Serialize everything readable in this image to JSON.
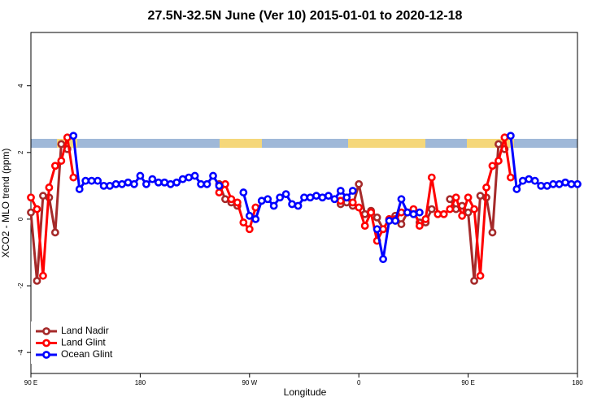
{
  "chart_data": {
    "type": "line",
    "title": "27.5N-32.5N June (Ver 10)   2015-01-01 to 2020-12-18",
    "x_label": "Longitude",
    "y_label": "XCO2 - MLO trend (ppm)",
    "x": [
      90,
      95,
      100,
      105,
      110,
      115,
      120,
      125,
      130,
      135,
      140,
      145,
      150,
      155,
      160,
      165,
      170,
      175,
      180,
      185,
      190,
      195,
      200,
      205,
      210,
      215,
      220,
      225,
      230,
      235,
      240,
      245,
      250,
      255,
      260,
      265,
      270,
      275,
      280,
      285,
      290,
      295,
      300,
      305,
      310,
      315,
      320,
      325,
      330,
      335,
      340,
      345,
      350,
      355,
      360,
      365,
      370,
      375,
      380,
      385,
      390,
      395,
      400,
      405,
      410,
      415,
      420,
      425,
      430,
      435,
      440,
      445,
      450,
      455,
      460,
      465,
      470,
      475,
      480,
      485,
      490,
      495,
      500,
      505,
      510,
      515,
      520,
      525,
      530,
      535,
      540
    ],
    "xlim": [
      90,
      540
    ],
    "xticks": [
      {
        "value": 90,
        "label": "90 E"
      },
      180,
      {
        "value": 270,
        "label": "90 W"
      },
      {
        "value": 360,
        "label": "0"
      },
      {
        "value": 450,
        "label": "90 E"
      },
      {
        "value": 540,
        "label": "180"
      }
    ],
    "ylim": [
      -4.63,
      5.6
    ],
    "yticks": [
      -4,
      -2,
      0,
      2,
      4
    ],
    "legend": "bottom-left",
    "series": [
      {
        "name": "Land Nadir",
        "color": "#a52a2a",
        "values": [
          0.2,
          -1.85,
          0.7,
          0.65,
          -0.4,
          2.25,
          2.1,
          null,
          null,
          null,
          null,
          null,
          null,
          null,
          null,
          null,
          null,
          null,
          null,
          null,
          null,
          null,
          null,
          null,
          null,
          null,
          null,
          null,
          null,
          null,
          null,
          1.05,
          0.6,
          0.5,
          0.4,
          null,
          null,
          null,
          null,
          null,
          null,
          null,
          null,
          null,
          null,
          null,
          null,
          null,
          null,
          null,
          null,
          0.45,
          0.5,
          0.4,
          1.05,
          0.15,
          0.25,
          0.05,
          -0.3,
          0.0,
          0.1,
          -0.15,
          0.2,
          0.2,
          -0.1,
          -0.1,
          0.3,
          null,
          null,
          0.6,
          0.3,
          0.4,
          0.2,
          -1.85,
          0.7,
          0.65,
          -0.4,
          2.25,
          2.1,
          null,
          null,
          null,
          null,
          null,
          null,
          null,
          null,
          null,
          null,
          null,
          null
        ]
      },
      {
        "name": "Land Glint",
        "color": "#ff0000",
        "values": [
          0.65,
          0.3,
          -1.7,
          0.95,
          1.6,
          1.75,
          2.45,
          1.25,
          null,
          null,
          null,
          null,
          null,
          null,
          null,
          null,
          null,
          null,
          null,
          null,
          null,
          null,
          null,
          null,
          null,
          null,
          null,
          null,
          null,
          null,
          null,
          0.8,
          1.05,
          0.6,
          0.5,
          -0.1,
          -0.3,
          0.35,
          null,
          null,
          null,
          null,
          null,
          null,
          null,
          null,
          null,
          null,
          null,
          null,
          null,
          0.55,
          0.65,
          0.5,
          0.35,
          -0.2,
          0.2,
          -0.65,
          -0.3,
          0.0,
          0.0,
          0.2,
          0.2,
          0.3,
          -0.2,
          0.0,
          1.25,
          0.15,
          0.15,
          0.3,
          0.65,
          0.1,
          0.65,
          0.3,
          -1.7,
          0.95,
          1.6,
          1.75,
          2.45,
          1.25,
          null,
          null,
          null,
          null,
          null,
          null,
          null,
          null,
          null,
          null,
          null
        ]
      },
      {
        "name": "Ocean Glint",
        "color": "#0000ff",
        "values": [
          null,
          null,
          null,
          null,
          null,
          null,
          null,
          2.5,
          0.9,
          1.15,
          1.15,
          1.15,
          1.0,
          1.0,
          1.05,
          1.05,
          1.1,
          1.05,
          1.3,
          1.05,
          1.2,
          1.1,
          1.1,
          1.05,
          1.1,
          1.2,
          1.25,
          1.3,
          1.05,
          1.05,
          1.3,
          1.0,
          null,
          null,
          null,
          0.8,
          0.1,
          0.0,
          0.55,
          0.6,
          0.4,
          0.65,
          0.75,
          0.45,
          0.4,
          0.65,
          0.65,
          0.7,
          0.65,
          0.7,
          0.6,
          0.85,
          0.65,
          0.85,
          null,
          null,
          null,
          -0.3,
          -1.2,
          -0.05,
          -0.05,
          0.6,
          0.2,
          0.15,
          0.2,
          null,
          null,
          null,
          null,
          null,
          null,
          null,
          null,
          null,
          null,
          null,
          null,
          null,
          null,
          2.5,
          0.9,
          1.15,
          1.2,
          1.15,
          1.0,
          1.0,
          1.05,
          1.05,
          1.1,
          1.05,
          1.05
        ]
      }
    ]
  }
}
